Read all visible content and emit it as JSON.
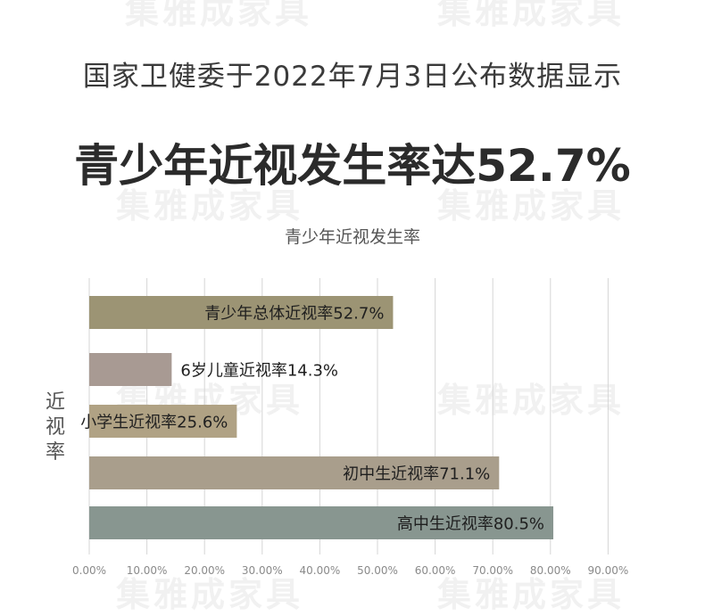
{
  "page": {
    "headline": "国家卫健委于2022年7月3日公布数据显示",
    "big_title": "青少年近视发生率达52.7%",
    "watermark": "集雅成家具"
  },
  "chart_data": {
    "type": "bar",
    "orientation": "horizontal",
    "title": "青少年近视发生率",
    "ylabel": "近视率",
    "xlabel": "",
    "categories": [
      "青少年总体近视率",
      "6岁儿童近视率",
      "小学生近视率",
      "初中生近视率",
      "高中生近视率"
    ],
    "values": [
      52.7,
      14.3,
      25.6,
      71.1,
      80.5
    ],
    "bar_labels": [
      "青少年总体近视率52.7%",
      "6岁儿童近视率14.3%",
      "小学生近视率25.6%",
      "初中生近视率71.1%",
      "高中生近视率80.5%"
    ],
    "bar_colors": [
      "#9c9474",
      "#a89a93",
      "#b0a284",
      "#a99e8c",
      "#889690"
    ],
    "xlim": [
      0,
      90
    ],
    "xticks": [
      "0.00%",
      "10.00%",
      "20.00%",
      "30.00%",
      "40.00%",
      "50.00%",
      "60.00%",
      "70.00%",
      "80.00%",
      "90.00%"
    ],
    "grid": true,
    "legend": "none"
  }
}
